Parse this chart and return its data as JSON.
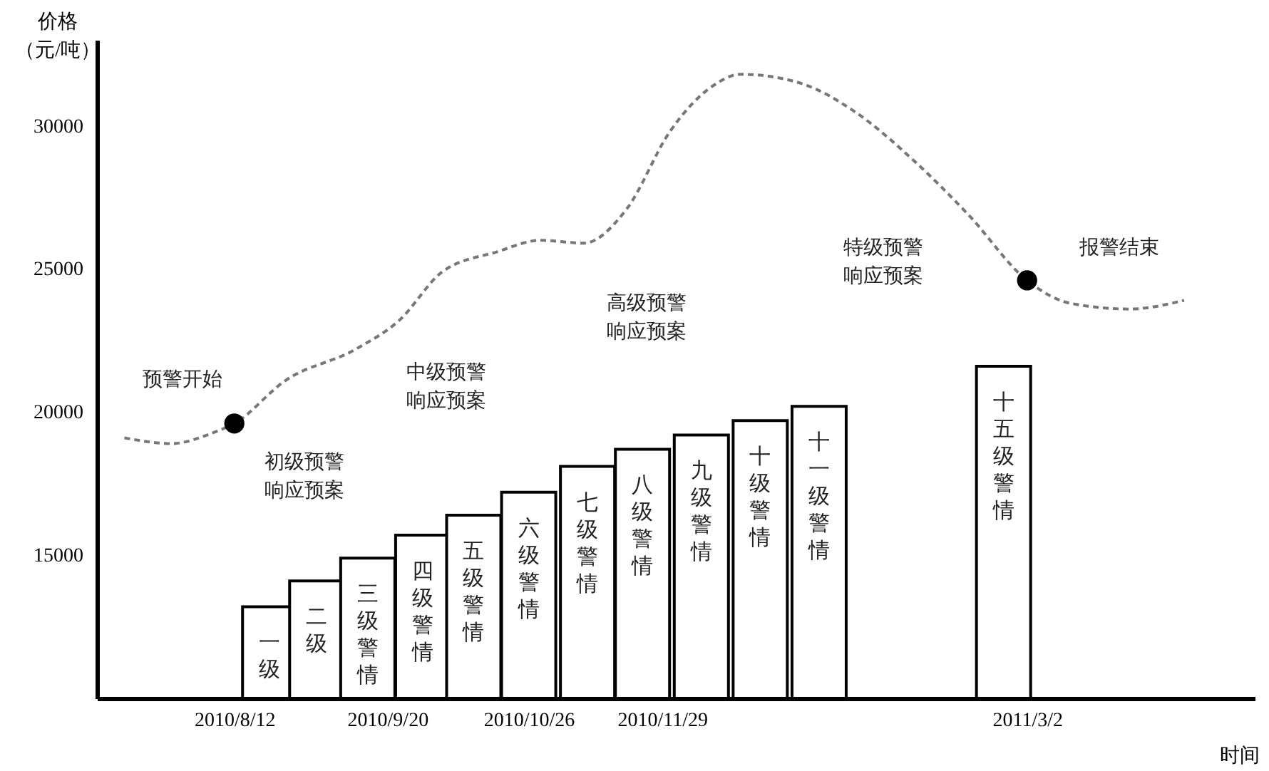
{
  "chart_data": {
    "type": "bar",
    "xlabel": "时间",
    "ylabel": "价格（元/吨）",
    "xlim": [
      "2010-07-08",
      "2011-04-29"
    ],
    "ylim": [
      10000,
      33000
    ],
    "yticks": [
      15000,
      20000,
      25000,
      30000
    ],
    "xticks": [
      {
        "value": "2010-08-12",
        "label": "2010/8/12"
      },
      {
        "value": "2010-09-20",
        "label": "2010/9/20"
      },
      {
        "value": "2010-10-26",
        "label": "2010/10/26"
      },
      {
        "value": "2010-11-29",
        "label": "2010/11/29"
      },
      {
        "value": "2011-03-02",
        "label": "2011/3/2"
      }
    ],
    "series": [
      {
        "color": "#ffffff",
        "x": [
          "2010-08-21",
          "2010-09-02",
          "2010-09-15",
          "2010-09-29",
          "2010-10-12",
          "2010-10-26",
          "2010-11-10",
          "2010-11-24",
          "2010-12-09",
          "2010-12-24",
          "2011-01-08",
          "2011-02-24"
        ],
        "values": [
          13200,
          14100,
          14900,
          15700,
          16400,
          17200,
          18100,
          18700,
          19200,
          19700,
          20200,
          21600
        ]
      },
      {
        "type": "line",
        "color": "#777777",
        "line_style": "dashed",
        "marker": "none",
        "x": [
          "2010-07-15",
          "2010-07-27",
          "2010-08-07",
          "2010-08-12",
          "2010-08-25",
          "2010-09-12",
          "2010-09-23",
          "2010-10-04",
          "2010-10-18",
          "2010-10-29",
          "2010-11-09",
          "2010-11-20",
          "2010-12-01",
          "2010-12-12",
          "2010-12-19",
          "2011-01-03",
          "2011-01-17",
          "2011-02-01",
          "2011-02-15",
          "2011-03-02",
          "2011-03-13",
          "2011-03-28",
          "2011-04-11"
        ],
        "values": [
          19100,
          18900,
          19300,
          19600,
          21100,
          22200,
          23200,
          24900,
          25600,
          26000,
          25900,
          27100,
          29800,
          31400,
          31800,
          31500,
          30500,
          28800,
          26900,
          24600,
          23800,
          23600,
          23900
        ]
      },
      {
        "type": "scatter",
        "color": "#000000",
        "marker": "circle",
        "x": [
          "2010-08-12",
          "2011-03-02"
        ],
        "values": [
          19600,
          24600
        ]
      }
    ],
    "annotations": [
      "预警开始",
      "报警结束",
      "初级预警响应预案",
      "中级预警响应预案",
      "高级预警响应预案",
      "特级预警响应预案",
      "一级",
      "二级",
      "三级警情",
      "四级警情",
      "五级警情",
      "六级警情",
      "七级警情",
      "八级警情",
      "九级警情",
      "十级警情",
      "十一级警情",
      "十五级警情"
    ]
  }
}
